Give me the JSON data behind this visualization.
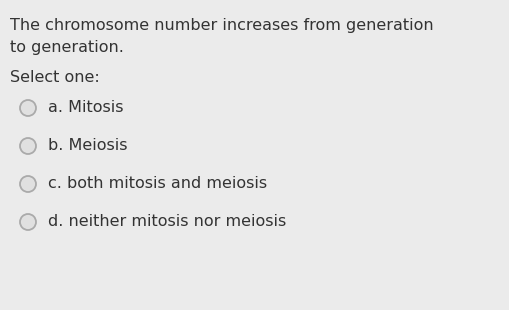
{
  "background_color": "#ebebeb",
  "question_line1": "The chromosome number increases from generation",
  "question_line2": "to generation.",
  "select_label": "Select one:",
  "options": [
    "a. Mitosis",
    "b. Meiosis",
    "c. both mitosis and meiosis",
    "d. neither mitosis nor meiosis"
  ],
  "text_color": "#333333",
  "circle_edge_color": "#aaaaaa",
  "circle_face_color": "#e0e0e0",
  "question_fontsize": 11.5,
  "select_fontsize": 11.5,
  "option_fontsize": 11.5,
  "font_family": "DejaVu Sans",
  "figwidth": 5.09,
  "figheight": 3.1,
  "dpi": 100
}
